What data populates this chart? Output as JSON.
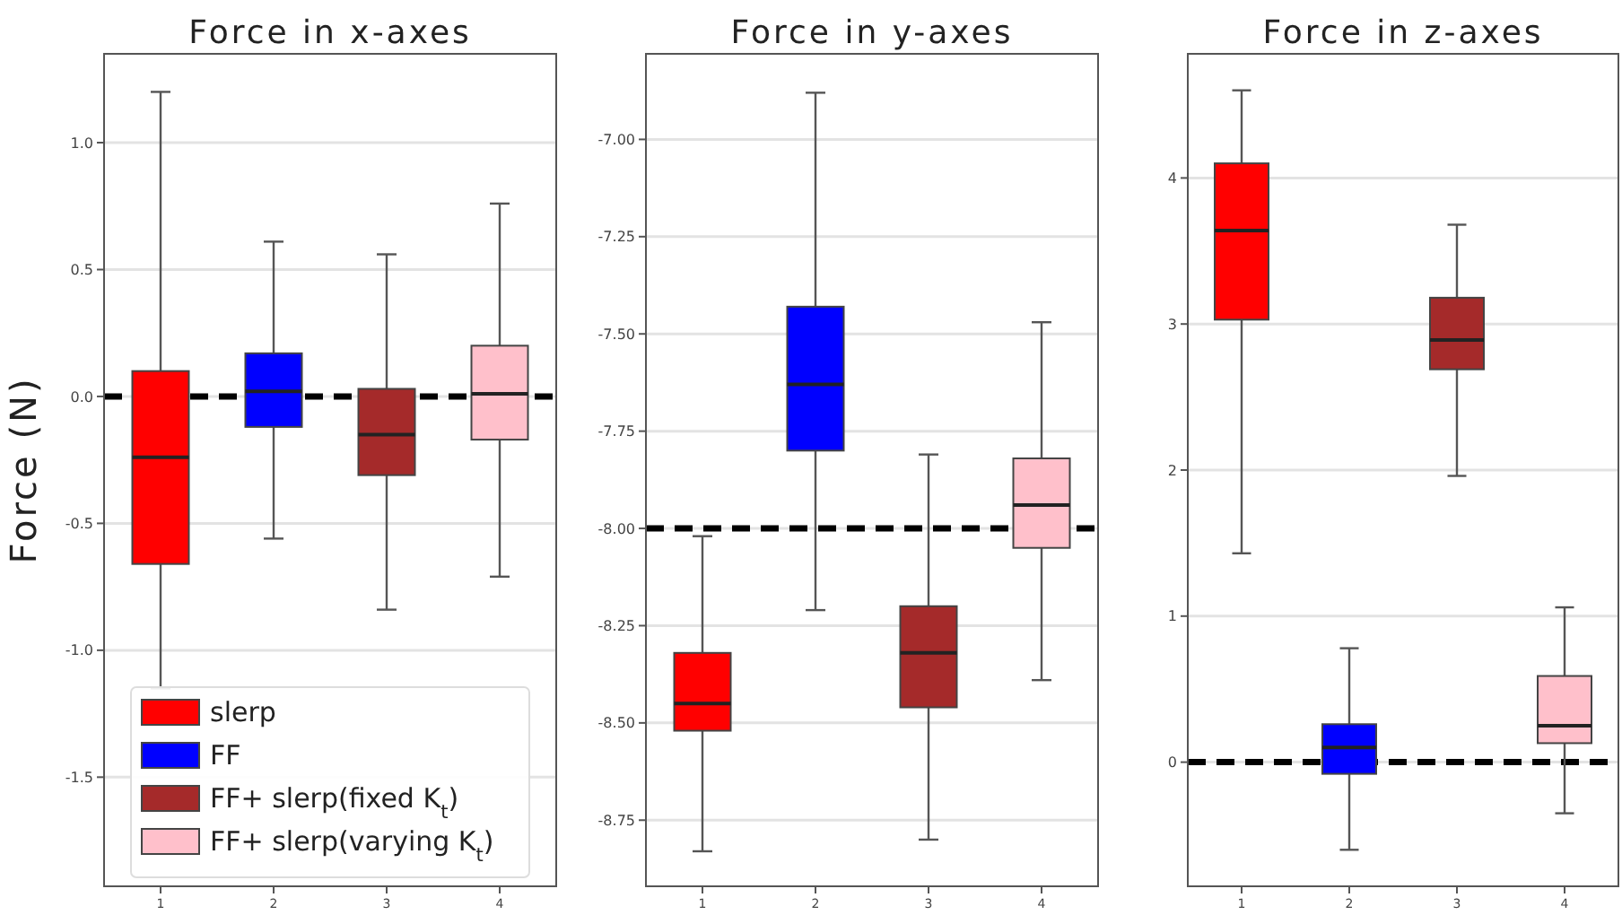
{
  "chart_data": [
    {
      "type": "box",
      "title": "Force in x-axes",
      "ylabel": "Force (N)",
      "categories": [
        "1",
        "2",
        "3",
        "4"
      ],
      "ylim": [
        -1.93,
        1.35
      ],
      "yticks": [
        {
          "value": -1.5,
          "label": "-1.5"
        },
        {
          "value": -1,
          "label": "-1.0"
        },
        {
          "value": -0.5,
          "label": "-0.5"
        },
        {
          "value": 0,
          "label": "0.0"
        },
        {
          "value": 0.5,
          "label": "0.5"
        },
        {
          "value": 1,
          "label": "1.0"
        }
      ],
      "grid": "y",
      "legend": "bottom left",
      "ref_lines": [
        {
          "axis": "y",
          "value": 0,
          "color": "#000000",
          "line_style": "dashed"
        }
      ],
      "series": [
        {
          "name": "slerp",
          "color": "#ff0000",
          "boxes": [
            {
              "low": -1.15,
              "q1": -0.66,
              "median": -0.24,
              "q3": 0.1,
              "high": 1.2
            },
            null,
            null,
            null
          ]
        },
        {
          "name": "FF",
          "color": "#0000ff",
          "boxes": [
            null,
            {
              "low": -0.56,
              "q1": -0.12,
              "median": 0.02,
              "q3": 0.17,
              "high": 0.61
            },
            null,
            null
          ]
        },
        {
          "name": "FF+ slerp(fixed K$_{t}$)",
          "color": "#a52a2a",
          "boxes": [
            null,
            null,
            {
              "low": -0.84,
              "q1": -0.31,
              "median": -0.15,
              "q3": 0.03,
              "high": 0.56
            },
            null
          ]
        },
        {
          "name": "FF+ slerp(varying K$_{t}$)",
          "color": "#ffc0cb",
          "boxes": [
            null,
            null,
            null,
            {
              "low": -0.71,
              "q1": -0.17,
              "median": 0.01,
              "q3": 0.2,
              "high": 0.76
            }
          ]
        }
      ]
    },
    {
      "type": "box",
      "title": "Force in y-axes",
      "categories": [
        "1",
        "2",
        "3",
        "4"
      ],
      "ylim": [
        -8.92,
        -6.78
      ],
      "yticks": [
        {
          "value": -8.75,
          "label": "-8.75"
        },
        {
          "value": -8.5,
          "label": "-8.50"
        },
        {
          "value": -8.25,
          "label": "-8.25"
        },
        {
          "value": -8,
          "label": "-8.00"
        },
        {
          "value": -7.75,
          "label": "-7.75"
        },
        {
          "value": -7.5,
          "label": "-7.50"
        },
        {
          "value": -7.25,
          "label": "-7.25"
        },
        {
          "value": -7,
          "label": "-7.00"
        }
      ],
      "grid": "y",
      "ref_lines": [
        {
          "axis": "y",
          "value": -8,
          "color": "#000000",
          "line_style": "dashed"
        }
      ],
      "series": [
        {
          "color": "#ff0000",
          "boxes": [
            {
              "low": -8.83,
              "q1": -8.52,
              "median": -8.45,
              "q3": -8.32,
              "high": -8.02
            },
            null,
            null,
            null
          ]
        },
        {
          "color": "#0000ff",
          "boxes": [
            null,
            {
              "low": -8.21,
              "q1": -7.8,
              "median": -7.63,
              "q3": -7.43,
              "high": -6.88
            },
            null,
            null
          ]
        },
        {
          "color": "#a52a2a",
          "boxes": [
            null,
            null,
            {
              "low": -8.8,
              "q1": -8.46,
              "median": -8.32,
              "q3": -8.2,
              "high": -7.81
            },
            null
          ]
        },
        {
          "color": "#ffc0cb",
          "boxes": [
            null,
            null,
            null,
            {
              "low": -8.39,
              "q1": -8.05,
              "median": -7.94,
              "q3": -7.82,
              "high": -7.47
            }
          ]
        }
      ]
    },
    {
      "type": "box",
      "title": "Force in z-axes",
      "categories": [
        "1",
        "2",
        "3",
        "4"
      ],
      "ylim": [
        -0.85,
        4.85
      ],
      "yticks": [
        0,
        1,
        2,
        3,
        4
      ],
      "grid": "y",
      "ref_lines": [
        {
          "axis": "y",
          "value": 0,
          "color": "#000000",
          "line_style": "dashed"
        }
      ],
      "series": [
        {
          "color": "#ff0000",
          "boxes": [
            {
              "low": 1.43,
              "q1": 3.03,
              "median": 3.64,
              "q3": 4.1,
              "high": 4.6
            },
            null,
            null,
            null
          ]
        },
        {
          "color": "#0000ff",
          "boxes": [
            null,
            {
              "low": -0.6,
              "q1": -0.08,
              "median": 0.1,
              "q3": 0.26,
              "high": 0.78
            },
            null,
            null
          ]
        },
        {
          "color": "#a52a2a",
          "boxes": [
            null,
            null,
            {
              "low": 1.96,
              "q1": 2.69,
              "median": 2.89,
              "q3": 3.18,
              "high": 3.68
            },
            null
          ]
        },
        {
          "color": "#ffc0cb",
          "boxes": [
            null,
            null,
            null,
            {
              "low": -0.35,
              "q1": 0.13,
              "median": 0.25,
              "q3": 0.59,
              "high": 1.06
            }
          ]
        }
      ]
    }
  ]
}
